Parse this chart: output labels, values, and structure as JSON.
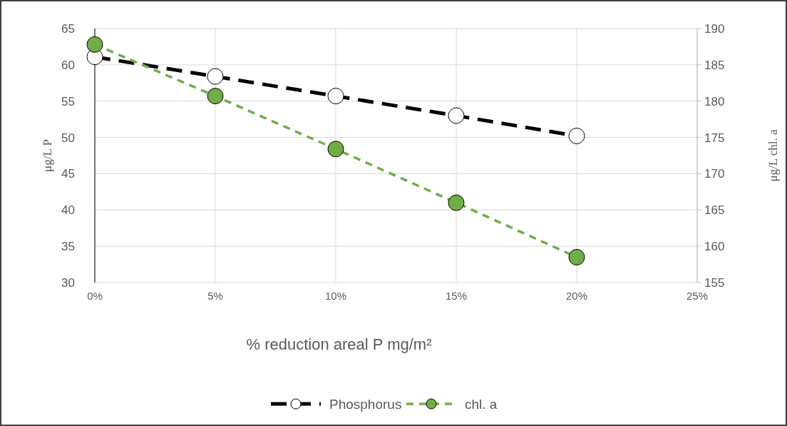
{
  "chart_data": {
    "type": "line",
    "xlabel": "% reduction areal P mg/m²",
    "ylabel": "μg/L  P",
    "y2label": "μg/L  chl. a",
    "x": [
      0,
      5,
      10,
      15,
      20
    ],
    "series": [
      {
        "name": "Phosphorus",
        "color": "#000000",
        "line_style": "dashed",
        "values": [
          61.1,
          58.4,
          55.7,
          53.0,
          50.2
        ]
      },
      {
        "name": "chl. a",
        "color": "#70ad47",
        "line_style": "dotted",
        "axis": "y2",
        "values": [
          187.8,
          180.7,
          173.4,
          166.0,
          158.5
        ]
      }
    ],
    "xlim": [
      0,
      25
    ],
    "xticks": [
      {
        "value": 0,
        "label": "0%"
      },
      {
        "value": 5,
        "label": "5%"
      },
      {
        "value": 10,
        "label": "10%"
      },
      {
        "value": 15,
        "label": "15%"
      },
      {
        "value": 20,
        "label": "20%"
      },
      {
        "value": 25,
        "label": "25%"
      }
    ],
    "ylim": [
      30,
      65
    ],
    "yticks": [
      30,
      35,
      40,
      45,
      50,
      55,
      60,
      65
    ],
    "y2lim": [
      155,
      190
    ],
    "y2ticks": [
      155,
      160,
      165,
      170,
      175,
      180,
      185,
      190
    ],
    "grid": true,
    "legend": "bottom",
    "marker": "circle"
  }
}
